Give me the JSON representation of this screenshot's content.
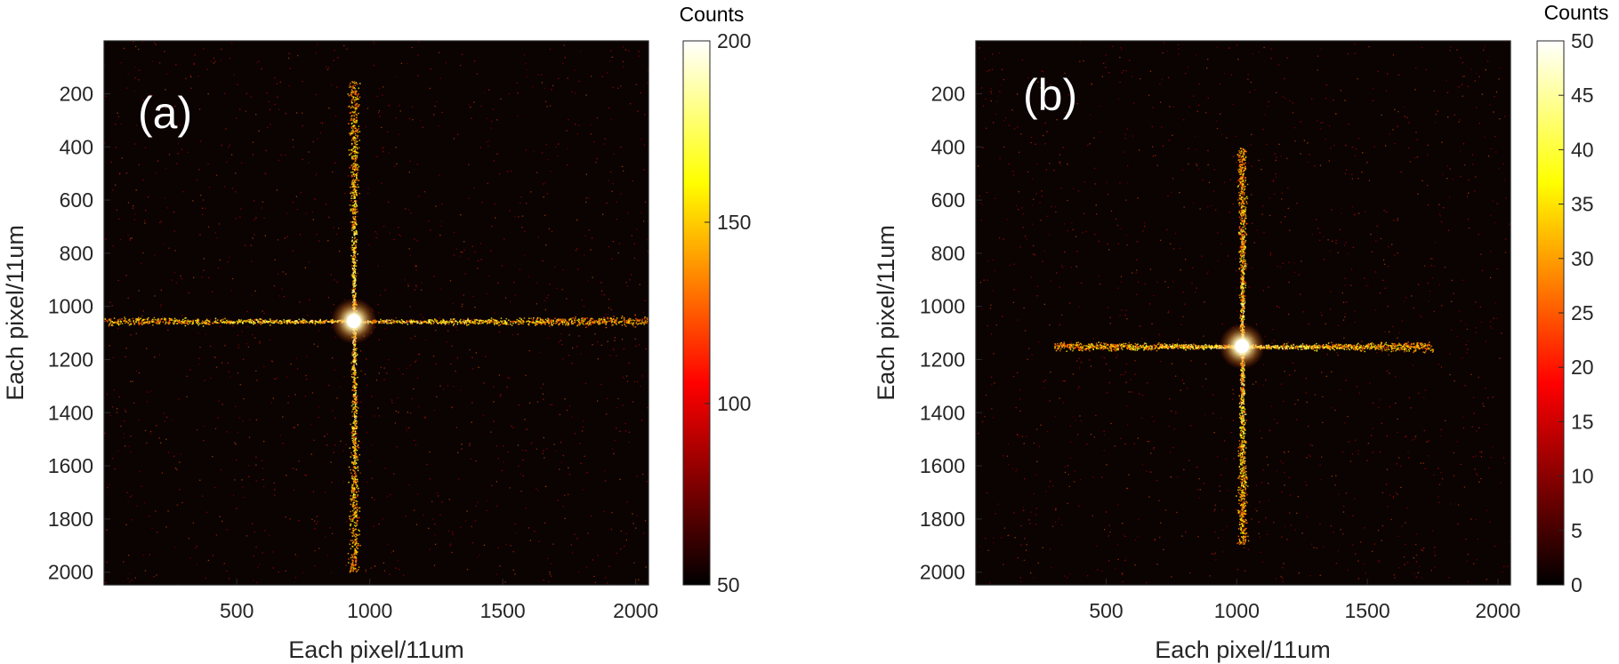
{
  "chart_data": [
    {
      "type": "heatmap",
      "panel_label": "(a)",
      "xlabel": "Each pixel/11um",
      "ylabel": "Each pixel/11um",
      "xlim": [
        1,
        2048
      ],
      "ylim": [
        1,
        2048
      ],
      "y_reversed": true,
      "xticks": [
        500,
        1000,
        1500,
        2000
      ],
      "yticks": [
        200,
        400,
        600,
        800,
        1000,
        1200,
        1400,
        1600,
        1800,
        2000
      ],
      "colorbar": {
        "title": "Counts",
        "range": [
          50,
          200
        ],
        "ticks": [
          50,
          100,
          150,
          200
        ],
        "colormap": "hot"
      },
      "features": {
        "peak_center": [
          940,
          1055
        ],
        "vertical_streak_x": 940,
        "vertical_streak_y_range": [
          150,
          2000
        ],
        "horizontal_streak_y": 1055,
        "horizontal_streak_x_range": [
          0,
          2048
        ]
      }
    },
    {
      "type": "heatmap",
      "panel_label": "(b)",
      "xlabel": "Each pixel/11um",
      "ylabel": "Each pixel/11um",
      "xlim": [
        1,
        2048
      ],
      "ylim": [
        1,
        2048
      ],
      "y_reversed": true,
      "xticks": [
        500,
        1000,
        1500,
        2000
      ],
      "yticks": [
        200,
        400,
        600,
        800,
        1000,
        1200,
        1400,
        1600,
        1800,
        2000
      ],
      "colorbar": {
        "title": "Counts",
        "range": [
          0,
          50
        ],
        "ticks": [
          0,
          5,
          10,
          15,
          20,
          25,
          30,
          35,
          40,
          45,
          50
        ],
        "colormap": "hot"
      },
      "features": {
        "peak_center": [
          1020,
          1150
        ],
        "vertical_streak_x": 1020,
        "vertical_streak_y_range": [
          400,
          1900
        ],
        "horizontal_streak_y": 1150,
        "horizontal_streak_x_range": [
          300,
          1750
        ]
      }
    }
  ]
}
